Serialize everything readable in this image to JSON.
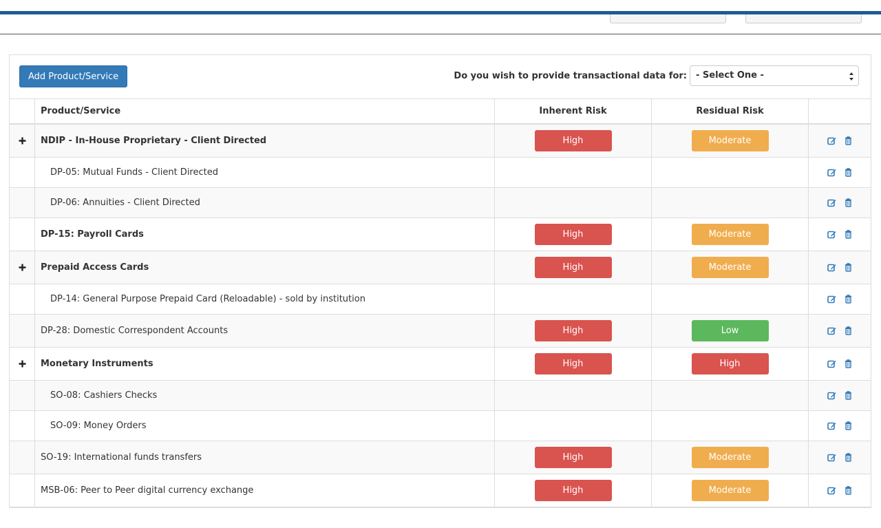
{
  "toolbar": {
    "add_button": "Add Product/Service",
    "question": "Do you wish to provide transactional data for:",
    "select": "- Select One -"
  },
  "table": {
    "headers": [
      "Product/Service",
      "Inherent Risk",
      "Residual Risk"
    ],
    "rows": [
      {
        "expandable": true,
        "bold": true,
        "indent": false,
        "name": "NDIP - In-House Proprietary - Client Directed",
        "inherent": {
          "label": "High",
          "color": "#d9534f"
        },
        "residual": {
          "label": "Moderate",
          "color": "#f0ad4e"
        }
      },
      {
        "expandable": false,
        "bold": false,
        "indent": true,
        "name": "DP-05: Mutual Funds - Client Directed",
        "inherent": null,
        "residual": null
      },
      {
        "expandable": false,
        "bold": false,
        "indent": true,
        "name": "DP-06: Annuities - Client Directed",
        "inherent": null,
        "residual": null
      },
      {
        "expandable": false,
        "bold": true,
        "indent": false,
        "name": "DP-15: Payroll Cards",
        "inherent": {
          "label": "High",
          "color": "#d9534f"
        },
        "residual": {
          "label": "Moderate",
          "color": "#f0ad4e"
        }
      },
      {
        "expandable": true,
        "bold": true,
        "indent": false,
        "name": "Prepaid Access Cards",
        "inherent": {
          "label": "High",
          "color": "#d9534f"
        },
        "residual": {
          "label": "Moderate",
          "color": "#f0ad4e"
        }
      },
      {
        "expandable": false,
        "bold": false,
        "indent": true,
        "name": "DP-14: General Purpose Prepaid Card (Reloadable) - sold by institution",
        "inherent": null,
        "residual": null
      },
      {
        "expandable": false,
        "bold": false,
        "indent": false,
        "name": "DP-28: Domestic Correspondent Accounts",
        "inherent": {
          "label": "High",
          "color": "#d9534f"
        },
        "residual": {
          "label": "Low",
          "color": "#5cb85c"
        }
      },
      {
        "expandable": true,
        "bold": true,
        "indent": false,
        "name": "Monetary Instruments",
        "inherent": {
          "label": "High",
          "color": "#d9534f"
        },
        "residual": {
          "label": "High",
          "color": "#d9534f"
        }
      },
      {
        "expandable": false,
        "bold": false,
        "indent": true,
        "name": "SO-08: Cashiers Checks",
        "inherent": null,
        "residual": null
      },
      {
        "expandable": false,
        "bold": false,
        "indent": true,
        "name": "SO-09: Money Orders",
        "inherent": null,
        "residual": null
      },
      {
        "expandable": false,
        "bold": false,
        "indent": false,
        "name": "SO-19: International funds transfers",
        "inherent": {
          "label": "High",
          "color": "#d9534f"
        },
        "residual": {
          "label": "Moderate",
          "color": "#f0ad4e"
        }
      },
      {
        "expandable": false,
        "bold": false,
        "indent": false,
        "name": "MSB-06: Peer to Peer digital currency exchange",
        "inherent": {
          "label": "High",
          "color": "#d9534f"
        },
        "residual": {
          "label": "Moderate",
          "color": "#f0ad4e"
        }
      }
    ]
  }
}
